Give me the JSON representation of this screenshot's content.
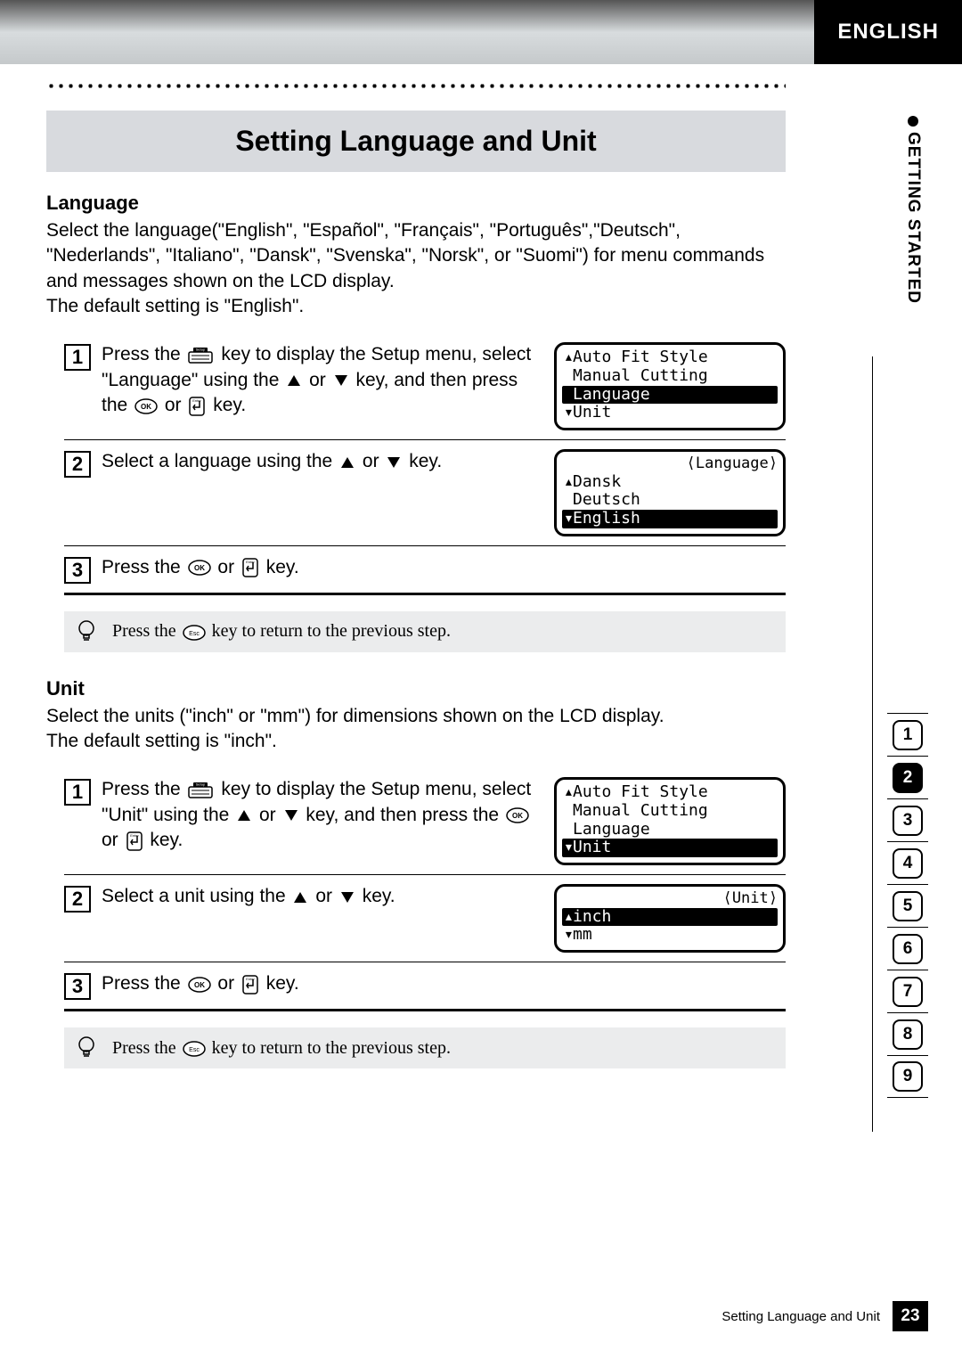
{
  "header": {
    "language_tab": "ENGLISH"
  },
  "side": {
    "label": "GETTING STARTED",
    "nav": [
      "1",
      "2",
      "3",
      "4",
      "5",
      "6",
      "7",
      "8",
      "9"
    ],
    "active_index": 1
  },
  "title": "Setting Language and Unit",
  "language_section": {
    "heading": "Language",
    "para1": "Select the language(\"English\", \"Español\", \"Français\", \"Português\",\"Deutsch\", \"Nederlands\", \"Italiano\", \"Dansk\", \"Svenska\", \"Norsk\", or \"Suomi\") for menu commands and messages shown on the LCD display.",
    "para2": "The default setting is \"English\".",
    "steps": [
      {
        "n": "1",
        "text_a": "Press the ",
        "text_b": " key to display the Setup menu, select \"Language\" using the ",
        "text_c": " or ",
        "text_d": " key, and then press the ",
        "text_e": " or ",
        "text_f": " key.",
        "lcd": {
          "header": "",
          "rows": [
            "Auto Fit Style",
            "Manual Cutting",
            "Language",
            "Unit"
          ],
          "selected_index": 2,
          "show_up": true,
          "show_down": true
        }
      },
      {
        "n": "2",
        "text_a": "Select a language using the ",
        "text_b": " or ",
        "text_c": " key.",
        "lcd": {
          "header": "⟨Language⟩",
          "rows": [
            "Dansk",
            "Deutsch",
            "English"
          ],
          "selected_index": 2,
          "show_up": true,
          "show_down": true
        }
      },
      {
        "n": "3",
        "text_a": "Press the ",
        "text_b": " or ",
        "text_c": " key."
      }
    ],
    "tip_a": "Press the ",
    "tip_b": " key to return to the previous step."
  },
  "unit_section": {
    "heading": "Unit",
    "para1": "Select the units (\"inch\" or \"mm\") for dimensions shown on the LCD display.",
    "para2": "The default setting is \"inch\".",
    "steps": [
      {
        "n": "1",
        "text_a": "Press the ",
        "text_b": " key to display the Setup menu, select \"Unit\" using the ",
        "text_c": " or ",
        "text_d": " key, and then press the ",
        "text_e": " or ",
        "text_f": " key.",
        "lcd": {
          "header": "",
          "rows": [
            "Auto Fit Style",
            "Manual Cutting",
            "Language",
            "Unit"
          ],
          "selected_index": 3,
          "show_up": true,
          "show_down": true
        }
      },
      {
        "n": "2",
        "text_a": "Select a unit using the ",
        "text_b": " or ",
        "text_c": " key.",
        "lcd": {
          "header": "⟨Unit⟩",
          "rows": [
            "inch",
            "mm"
          ],
          "selected_index": 0,
          "show_up": true,
          "show_down": true
        }
      },
      {
        "n": "3",
        "text_a": "Press the ",
        "text_b": " or ",
        "text_c": " key."
      }
    ],
    "tip_a": "Press the ",
    "tip_b": " key to return to the previous step."
  },
  "footer": {
    "text": "Setting Language and Unit",
    "page": "23"
  },
  "colors": {
    "title_bg": "#d8dade",
    "tip_bg": "#ebeced",
    "black": "#000000",
    "white": "#ffffff"
  }
}
